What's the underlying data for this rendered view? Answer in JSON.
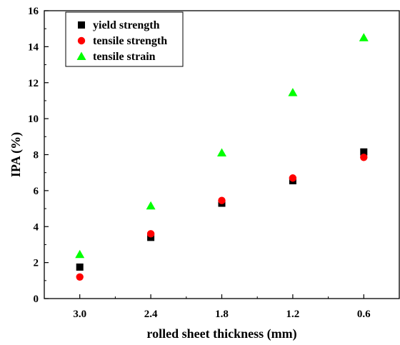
{
  "chart_data": {
    "type": "scatter",
    "title": "",
    "xlabel": "rolled sheet thickness (mm)",
    "ylabel": "IPA (%)",
    "x": [
      "3.0",
      "2.4",
      "1.8",
      "1.2",
      "0.6"
    ],
    "xlim": [
      3.3,
      0.3
    ],
    "x_reversed": true,
    "ylim": [
      0,
      16
    ],
    "yticks": [
      0,
      2,
      4,
      6,
      8,
      10,
      12,
      14,
      16
    ],
    "grid": false,
    "legend_position": "top-left",
    "series": [
      {
        "name": "yield strength",
        "marker": "square",
        "color": "#000000",
        "values": [
          1.75,
          3.4,
          5.3,
          6.55,
          8.15
        ]
      },
      {
        "name": "tensile strength",
        "marker": "circle",
        "color": "#ff0000",
        "values": [
          1.2,
          3.6,
          5.45,
          6.7,
          7.85
        ]
      },
      {
        "name": "tensile strain",
        "marker": "triangle",
        "color": "#00ff00",
        "values": [
          2.45,
          5.15,
          8.1,
          11.45,
          14.5
        ]
      }
    ]
  }
}
